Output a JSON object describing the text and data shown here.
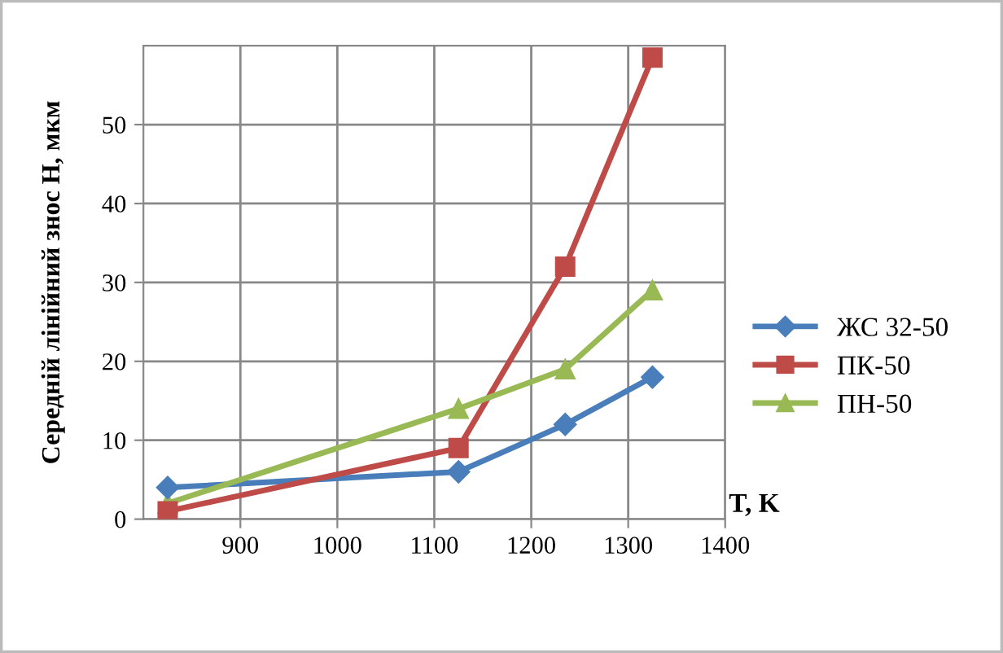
{
  "chart_data": {
    "type": "line",
    "xlabel": "T, K",
    "ylabel": "Середній лінійний знос H, мкм",
    "xlim": [
      800,
      1400
    ],
    "xticks": [
      900,
      1000,
      1100,
      1200,
      1300,
      1400
    ],
    "ylim": [
      0,
      60
    ],
    "yticks": [
      0,
      10,
      20,
      30,
      40,
      50
    ],
    "grid": true,
    "legend": "right",
    "series": [
      {
        "name": "ЖС 32-50",
        "color": "#4a7ebb",
        "marker": "diamond",
        "x": [
          825,
          1125,
          1235,
          1325
        ],
        "values": [
          4,
          6,
          12,
          18
        ]
      },
      {
        "name": "ПК-50",
        "color": "#be4b48",
        "marker": "square",
        "x": [
          825,
          1125,
          1235,
          1325
        ],
        "values": [
          1,
          9,
          32,
          58.5
        ]
      },
      {
        "name": "ПН-50",
        "color": "#98b954",
        "marker": "triangle",
        "x": [
          825,
          1125,
          1235,
          1325
        ],
        "values": [
          2,
          14,
          19,
          29
        ]
      }
    ]
  }
}
